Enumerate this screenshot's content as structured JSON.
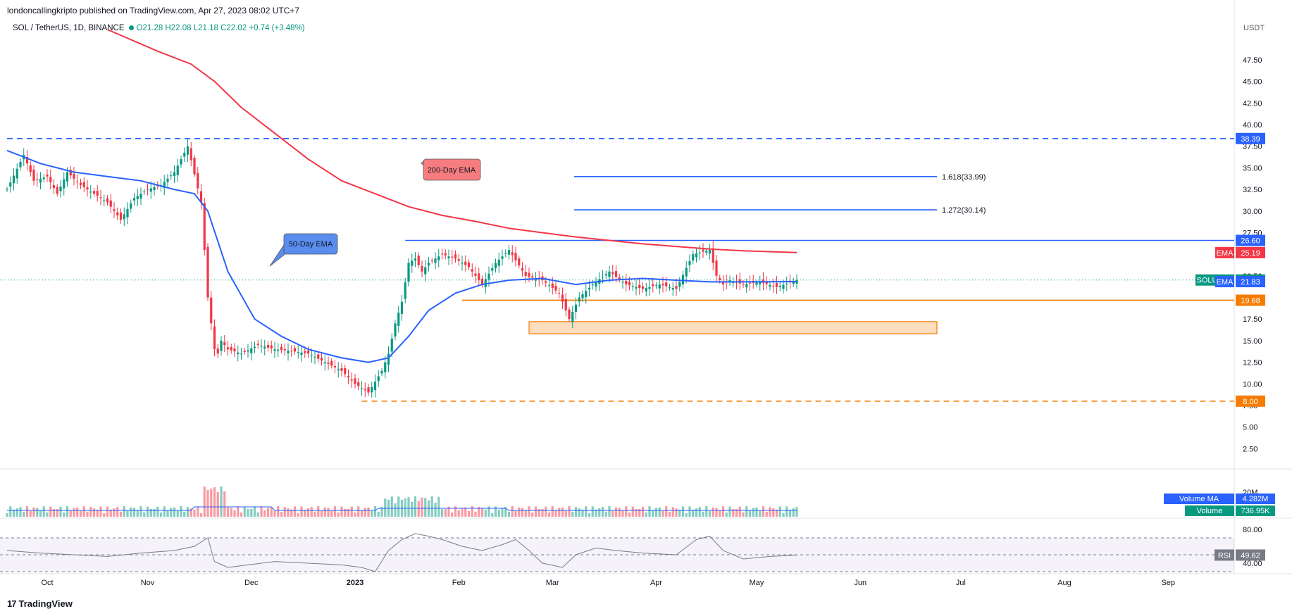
{
  "header": {
    "publisher": "londoncallingkripto published on TradingView.com, Apr 27, 2023 08:02 UTC+7",
    "symbol": "SOL / TetherUS, 1D, BINANCE",
    "ohlc": "O21.28 H22.08 L21.18 C22.02 +0.74 (+3.48%)",
    "currency": "USDT"
  },
  "footer": {
    "brand": "TradingView"
  },
  "chart_data": {
    "type": "candlestick",
    "title": "SOL / TetherUS, 1D, BINANCE",
    "price_axis": {
      "ticks": [
        "47.50",
        "45.00",
        "42.50",
        "40.00",
        "37.50",
        "35.00",
        "32.50",
        "30.00",
        "27.50",
        "25.00",
        "22.50",
        "20.00",
        "17.50",
        "15.00",
        "12.50",
        "10.00",
        "7.50",
        "5.00",
        "2.50"
      ],
      "ylim": [
        0,
        51
      ]
    },
    "time_axis": {
      "ticks": [
        "Oct",
        "Nov",
        "Dec",
        "2023",
        "Feb",
        "Mar",
        "Apr",
        "May",
        "Jun",
        "Jul",
        "Aug",
        "Sep"
      ]
    },
    "price_path": {
      "description_free": true,
      "days": [
        0,
        5,
        8,
        12,
        15,
        18,
        22,
        26,
        30,
        34,
        38,
        42,
        46,
        50,
        54,
        58,
        60,
        62,
        63,
        64,
        66,
        70,
        75,
        80,
        85,
        90,
        95,
        100,
        104,
        108,
        112,
        114,
        116,
        118,
        120,
        122,
        124,
        126,
        130,
        134,
        138,
        142,
        146,
        150,
        155,
        160,
        165,
        168,
        171,
        175,
        180,
        185,
        190,
        195,
        200,
        205,
        210,
        212,
        214,
        216,
        220,
        225,
        230,
        236
      ],
      "close": [
        32.5,
        36.5,
        33.5,
        34.0,
        32.0,
        34.5,
        33.0,
        32.0,
        31.0,
        29.0,
        31.5,
        32.5,
        33.0,
        34.5,
        37.5,
        31.0,
        20.0,
        14.0,
        13.5,
        15.0,
        14.0,
        13.5,
        14.5,
        14.0,
        13.8,
        13.5,
        12.5,
        11.5,
        10.0,
        9.0,
        11.5,
        13.5,
        17.0,
        19.5,
        24.0,
        24.5,
        23.0,
        24.0,
        25.0,
        24.5,
        23.5,
        21.5,
        24.0,
        25.5,
        22.5,
        22.0,
        20.5,
        17.5,
        20.0,
        21.5,
        23.0,
        21.5,
        21.0,
        21.5,
        21.0,
        25.0,
        25.5,
        22.5,
        21.5,
        22.0,
        21.5,
        21.8,
        21.2,
        22.02
      ]
    },
    "ema50": {
      "name": "EMA",
      "last": "21.83",
      "days": [
        0,
        10,
        20,
        30,
        40,
        50,
        56,
        60,
        66,
        74,
        82,
        90,
        100,
        108,
        114,
        120,
        126,
        134,
        142,
        150,
        160,
        170,
        180,
        190,
        200,
        210,
        220,
        236
      ],
      "values": [
        37.0,
        35.5,
        34.5,
        34.0,
        33.5,
        32.5,
        32.0,
        30.0,
        23.0,
        17.5,
        15.5,
        14.0,
        13.0,
        12.5,
        13.0,
        15.5,
        18.5,
        20.5,
        21.5,
        22.0,
        22.2,
        21.5,
        22.0,
        22.2,
        22.0,
        21.8,
        21.8,
        21.83
      ]
    },
    "ema200": {
      "name": "EMA",
      "last": "25.19",
      "days": [
        30,
        45,
        55,
        62,
        70,
        80,
        90,
        100,
        110,
        120,
        130,
        140,
        150,
        160,
        170,
        180,
        190,
        200,
        210,
        220,
        236
      ],
      "values": [
        51.0,
        48.5,
        47.0,
        45.0,
        42.0,
        39.0,
        36.0,
        33.5,
        32.0,
        30.5,
        29.5,
        28.8,
        28.0,
        27.5,
        27.0,
        26.6,
        26.2,
        25.9,
        25.6,
        25.4,
        25.19
      ]
    },
    "annotations": [
      {
        "name": "ema200-callout",
        "text": "200-Day EMA"
      },
      {
        "name": "ema50-callout",
        "text": "50-Day EMA"
      },
      {
        "name": "fib-1618",
        "text": "1.618(33.99)",
        "value": 33.99
      },
      {
        "name": "fib-1272",
        "text": "1.272(30.14)",
        "value": 30.14
      }
    ],
    "levels": [
      {
        "name": "resistance-high",
        "label": "38.39",
        "value": 38.39,
        "color": "#2962ff",
        "style": "dashed"
      },
      {
        "name": "range-top",
        "label": "26.60",
        "value": 26.6,
        "color": "#2962ff",
        "style": "solid"
      },
      {
        "name": "range-bottom",
        "label": "19.68",
        "value": 19.68,
        "color": "#f57c00",
        "style": "solid"
      },
      {
        "name": "cycle-low",
        "label": "8.00",
        "value": 8.0,
        "color": "#f57c00",
        "style": "dashed"
      }
    ],
    "demand_zone": {
      "low": 15.8,
      "high": 17.2
    },
    "price_labels": [
      {
        "name": "ema200-label",
        "text": "EMA",
        "value_text": "25.19",
        "value": 25.19,
        "color": "#f23645"
      },
      {
        "name": "symbol-label",
        "text": "SOLUSDT",
        "value_text": "22.02",
        "value": 22.02,
        "color": "#089981"
      },
      {
        "name": "ema50-label",
        "text": "EMA",
        "value_text": "21.83",
        "value": 21.83,
        "color": "#2962ff"
      }
    ],
    "volume": {
      "axis_tick": "20M",
      "ma_label": "Volume MA",
      "ma_value": "4.282M",
      "vol_label": "Volume",
      "vol_value": "736.95K"
    },
    "rsi": {
      "label": "RSI",
      "value": "49.62",
      "ticks": [
        "80.00",
        "40.00"
      ],
      "days": [
        0,
        10,
        20,
        30,
        40,
        50,
        56,
        60,
        62,
        66,
        72,
        80,
        90,
        100,
        106,
        110,
        114,
        118,
        122,
        126,
        130,
        136,
        142,
        148,
        152,
        156,
        160,
        166,
        170,
        176,
        182,
        190,
        200,
        206,
        210,
        214,
        220,
        228,
        236
      ],
      "values": [
        55,
        52,
        50,
        48,
        52,
        55,
        60,
        70,
        42,
        35,
        38,
        42,
        40,
        38,
        35,
        30,
        55,
        68,
        75,
        72,
        68,
        60,
        55,
        62,
        68,
        55,
        40,
        35,
        50,
        58,
        55,
        52,
        50,
        68,
        72,
        55,
        45,
        48,
        49.62
      ]
    },
    "colors": {
      "up": "#089981",
      "down": "#f23645",
      "ema50": "#2962ff",
      "ema200": "#f23645",
      "orange": "#f57c00"
    }
  }
}
